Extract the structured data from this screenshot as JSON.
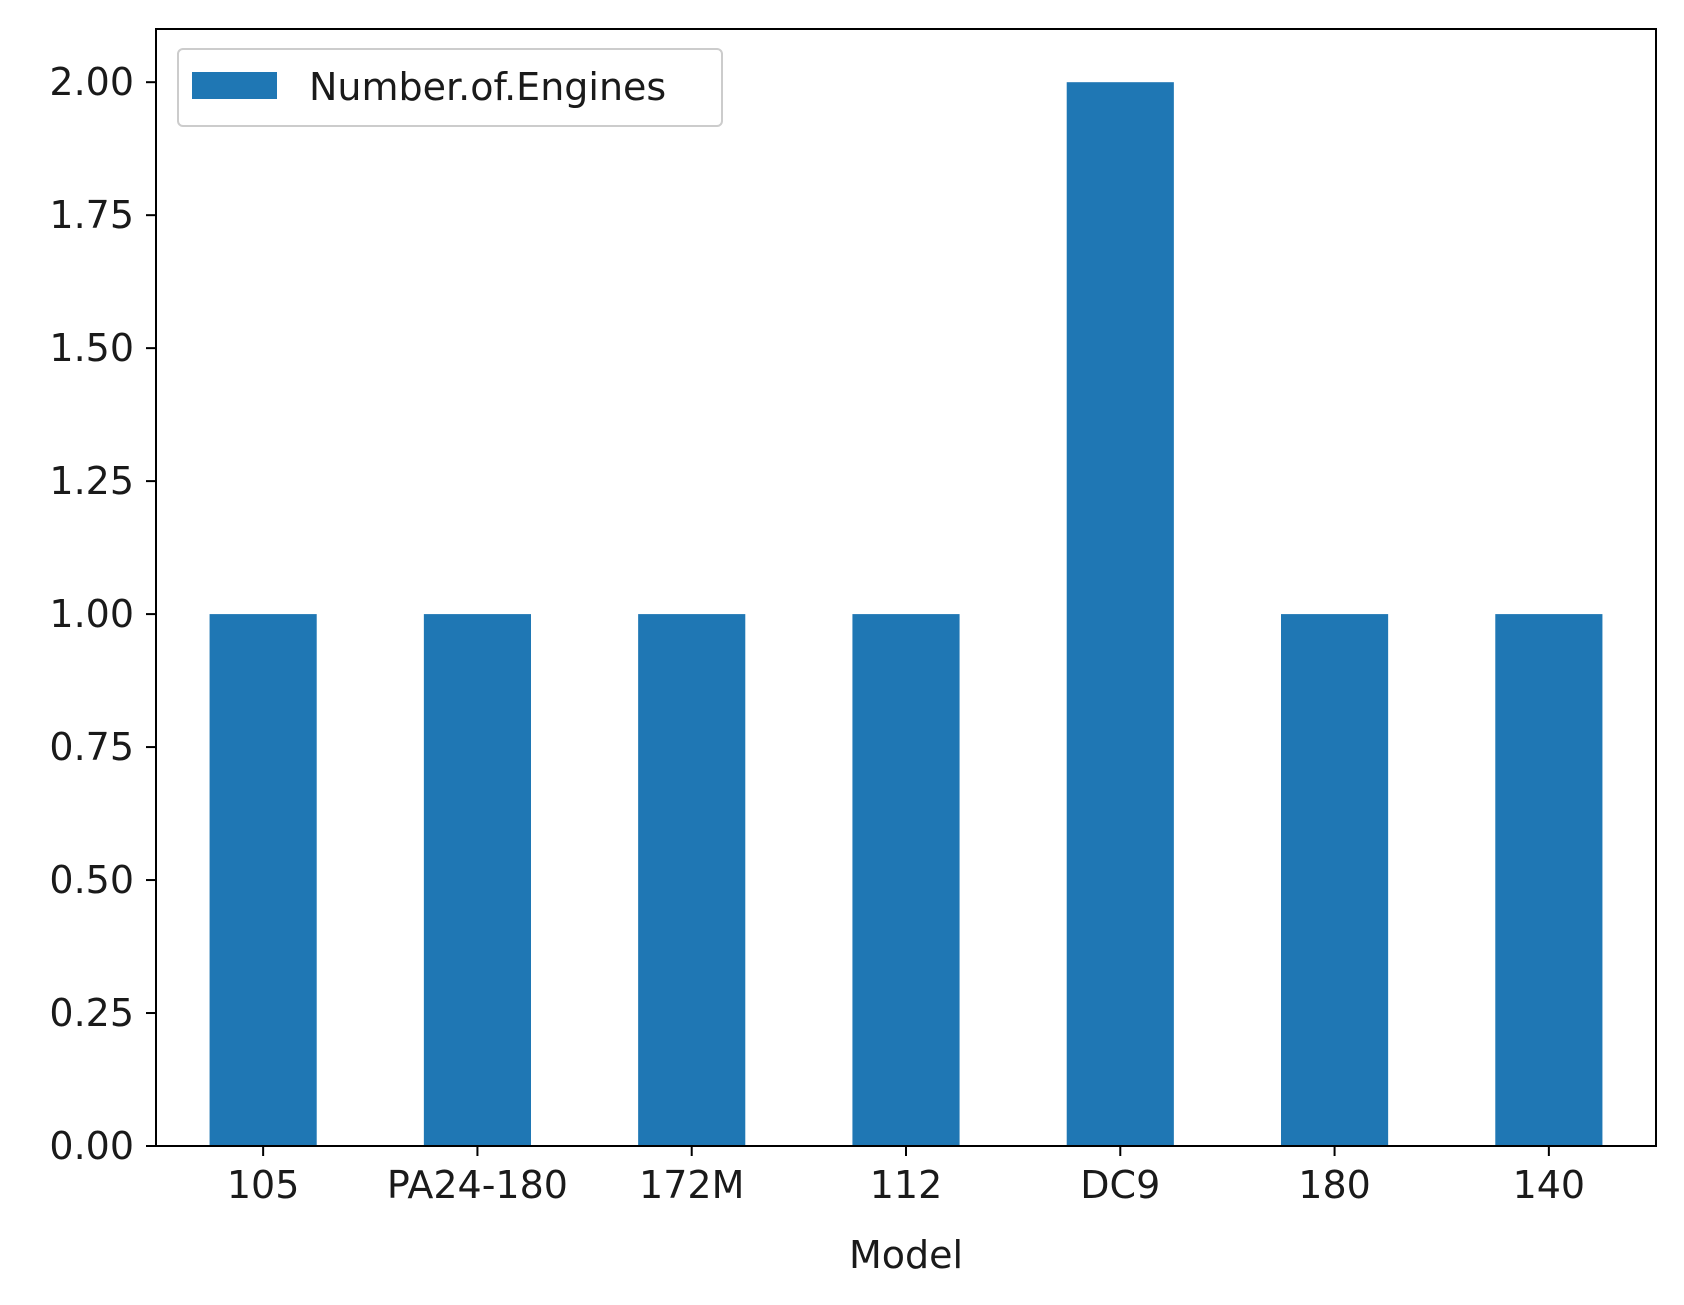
{
  "chart_data": {
    "type": "bar",
    "categories": [
      "105",
      "PA24-180",
      "172M",
      "112",
      "DC9",
      "180",
      "140"
    ],
    "series": [
      {
        "name": "Number.of.Engines",
        "values": [
          1,
          1,
          1,
          1,
          2,
          1,
          1
        ],
        "color": "#1f77b4"
      }
    ],
    "title": "",
    "xlabel": "Model",
    "ylabel": "",
    "ylim": [
      0,
      2.1
    ],
    "yticks": [
      "0.00",
      "0.25",
      "0.50",
      "0.75",
      "1.00",
      "1.25",
      "1.50",
      "1.75",
      "2.00"
    ],
    "grid": false,
    "legend_position": "top-left"
  }
}
